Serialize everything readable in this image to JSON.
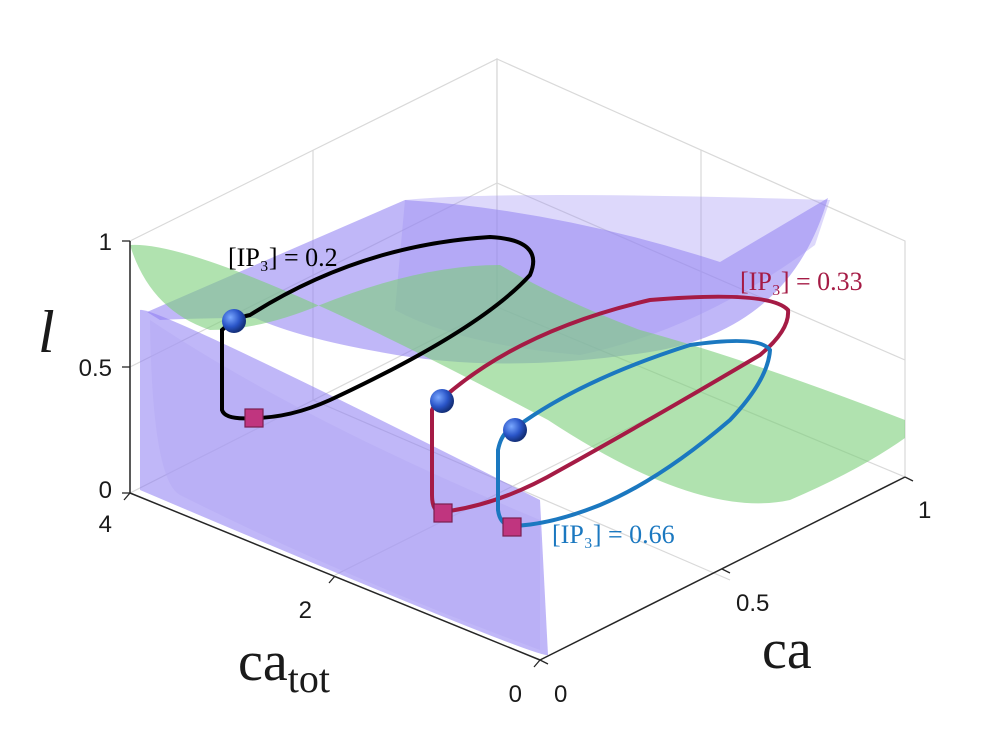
{
  "chart_data": {
    "type": "3d-surface-with-trajectories",
    "axes": {
      "x": {
        "label": "ca",
        "range": [
          0,
          1
        ],
        "ticks": [
          "0",
          "0.5",
          "1"
        ]
      },
      "y": {
        "label_main": "ca",
        "label_sub": "tot",
        "range": [
          0,
          4
        ],
        "ticks": [
          "0",
          "2",
          "4"
        ]
      },
      "z": {
        "label": "l",
        "range": [
          0,
          1
        ],
        "ticks": [
          "0",
          "0.5",
          "1"
        ]
      }
    },
    "grid": true,
    "surfaces": [
      {
        "color": "#8c7cf2",
        "opacity": 0.55
      },
      {
        "color": "#7ccf7a",
        "opacity": 0.6
      }
    ],
    "series": [
      {
        "name": "[IP₃] = 0.2",
        "ip3": 0.2,
        "color": "#000000"
      },
      {
        "name": "[IP₃] = 0.33",
        "ip3": 0.33,
        "color": "#a51b45"
      },
      {
        "name": "[IP₃] = 0.66",
        "ip3": 0.66,
        "color": "#1b78c0"
      }
    ],
    "markers": {
      "start": "square",
      "end": "sphere"
    }
  }
}
